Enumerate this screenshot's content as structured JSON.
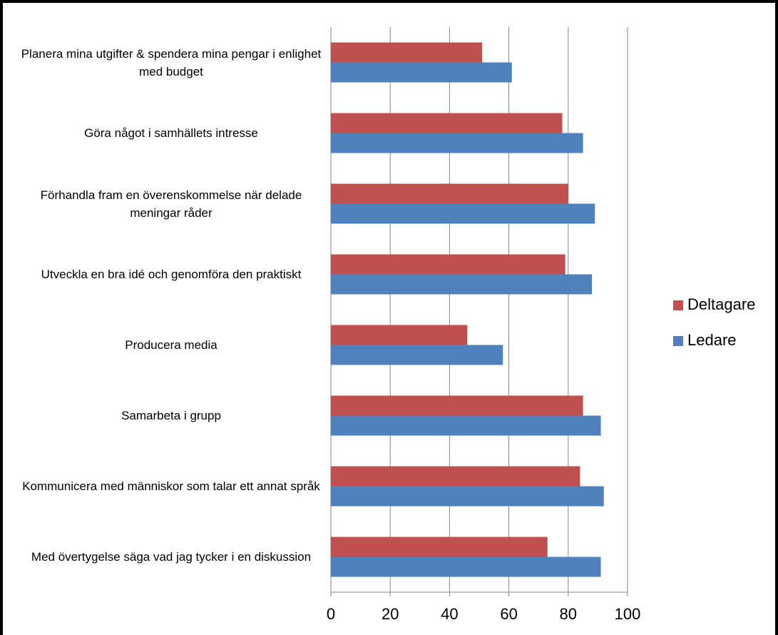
{
  "chart_data": {
    "type": "bar",
    "orientation": "horizontal",
    "categories": [
      "Planera mina utgifter & spendera mina pengar i enlighet med budget",
      "Göra något i samhällets intresse",
      "Förhandla fram en överenskommelse när delade meningar råder",
      "Utveckla en bra idé och genomföra den praktiskt",
      "Producera media",
      "Samarbeta i grupp",
      "Kommunicera med människor som talar ett annat språk",
      "Med övertygelse säga vad jag tycker i en diskussion"
    ],
    "series": [
      {
        "name": "Deltagare",
        "color": "#c0504d",
        "values": [
          51,
          78,
          80,
          79,
          46,
          85,
          84,
          73
        ]
      },
      {
        "name": "Ledare",
        "color": "#4f81bd",
        "values": [
          61,
          85,
          89,
          88,
          58,
          91,
          92,
          91
        ]
      }
    ],
    "xlim": [
      0,
      100
    ],
    "xticks": [
      0,
      20,
      40,
      60,
      80,
      100
    ],
    "grid": true,
    "legend": "right"
  }
}
